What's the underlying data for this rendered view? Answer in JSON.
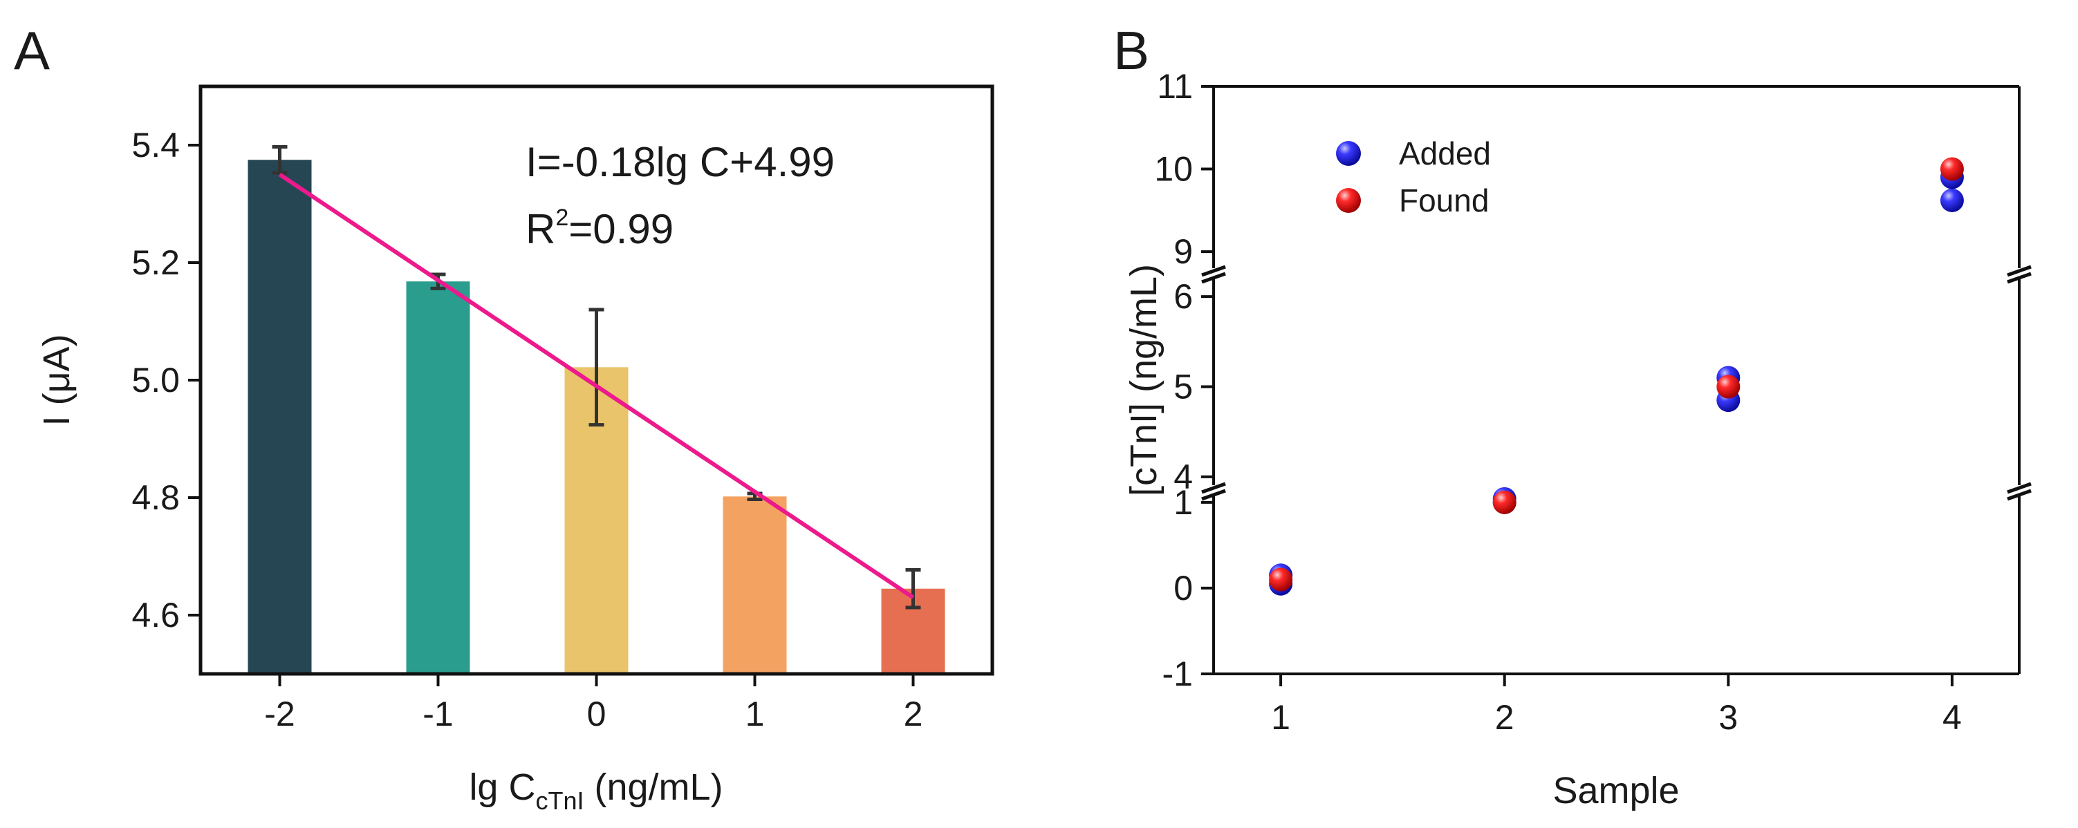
{
  "chart_data": [
    {
      "panel": "A",
      "type": "bar",
      "categories": [
        "-2",
        "-1",
        "0",
        "1",
        "2"
      ],
      "x": [
        -2,
        -1,
        0,
        1,
        2
      ],
      "values": [
        5.375,
        5.168,
        5.022,
        4.802,
        4.645
      ],
      "errors": [
        0.022,
        0.012,
        0.098,
        0.005,
        0.032
      ],
      "bar_colors": [
        "#264653",
        "#2a9d8f",
        "#e9c46a",
        "#f4a261",
        "#e76f51"
      ],
      "fit_line": {
        "slope": -0.18,
        "intercept": 4.99,
        "color": "#ec1a8c"
      },
      "equation": "I=-0.18lg C+4.99",
      "r2_prefix": "R",
      "r2_sup": "2",
      "r2_value": "=0.99",
      "xlabel_main": "lg C",
      "xlabel_sub": "cTnI",
      "xlabel_unit": " (ng/mL)",
      "ylabel": "I (μA)",
      "xlim": [
        -2.5,
        2.5
      ],
      "ylim": [
        4.5,
        5.5
      ],
      "yticks": [
        4.6,
        4.8,
        5.0,
        5.2,
        5.4
      ],
      "ytick_labels": [
        "4.6",
        "4.8",
        "5.0",
        "5.2",
        "5.4"
      ]
    },
    {
      "panel": "B",
      "type": "scatter",
      "xlabel": "Sample",
      "ylabel": "[cTnI] (ng/mL)",
      "xlim": [
        0.7,
        4.3
      ],
      "x_ticks": [
        1,
        2,
        3,
        4
      ],
      "x_tick_labels": [
        "1",
        "2",
        "3",
        "4"
      ],
      "y_segments": [
        {
          "range": [
            -1,
            1.2
          ],
          "ticks": [
            -1,
            0,
            1
          ],
          "tick_labels": [
            "-1",
            "0",
            "1"
          ]
        },
        {
          "range": [
            3.8,
            6.2
          ],
          "ticks": [
            4,
            5,
            6
          ],
          "tick_labels": [
            "4",
            "5",
            "6"
          ]
        },
        {
          "range": [
            8.8,
            11
          ],
          "ticks": [
            9,
            10,
            11
          ],
          "tick_labels": [
            "9",
            "10",
            "11"
          ]
        }
      ],
      "series": [
        {
          "name": "Added",
          "color": "#1a1ae6",
          "x": [
            1,
            1,
            2,
            2,
            3,
            3,
            4,
            4
          ],
          "y": [
            0.05,
            0.15,
            1.0,
            1.04,
            4.85,
            5.1,
            9.62,
            9.9
          ]
        },
        {
          "name": "Found",
          "color": "#e61a1a",
          "x": [
            1,
            2,
            3,
            4
          ],
          "y": [
            0.1,
            1.0,
            5.0,
            10.0
          ]
        }
      ],
      "legend_position": "top-left"
    }
  ],
  "panels": {
    "a_letter": "A",
    "b_letter": "B"
  }
}
